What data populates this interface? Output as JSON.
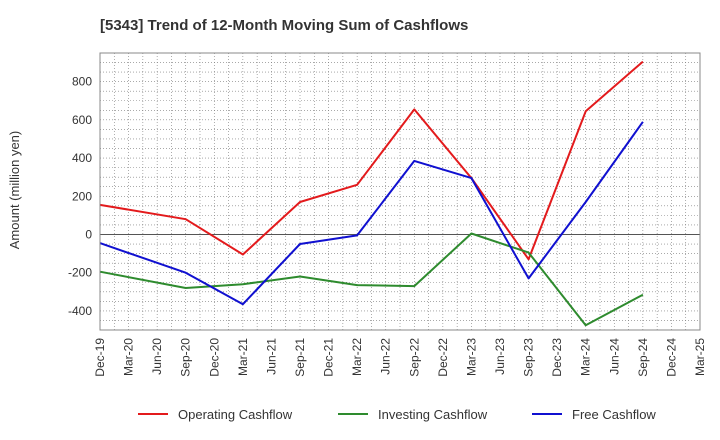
{
  "chart_data": {
    "type": "line",
    "title": "[5343]  Trend of 12-Month Moving Sum of Cashflows",
    "xlabel": "",
    "ylabel": "Amount (million yen)",
    "ylim": [
      -500,
      950
    ],
    "yticks": [
      800,
      600,
      400,
      200,
      0,
      -200,
      -400
    ],
    "grid": true,
    "legend_position": "bottom",
    "categories": [
      "Dec-19",
      "Mar-20",
      "Jun-20",
      "Sep-20",
      "Dec-20",
      "Mar-21",
      "Jun-21",
      "Sep-21",
      "Dec-21",
      "Mar-22",
      "Jun-22",
      "Sep-22",
      "Dec-22",
      "Mar-23",
      "Jun-23",
      "Sep-23",
      "Dec-23",
      "Mar-24",
      "Jun-24",
      "Sep-24",
      "Dec-24",
      "Mar-25"
    ],
    "series": [
      {
        "name": "Operating Cashflow",
        "color": "#e31a1c",
        "values": [
          155,
          null,
          null,
          80,
          null,
          -105,
          null,
          170,
          null,
          260,
          null,
          655,
          null,
          295,
          null,
          -130,
          null,
          645,
          null,
          905,
          null,
          null
        ]
      },
      {
        "name": "Investing Cashflow",
        "color": "#2e8b2e",
        "values": [
          -195,
          null,
          null,
          -280,
          null,
          -260,
          null,
          -220,
          null,
          -265,
          null,
          -270,
          null,
          5,
          null,
          -95,
          null,
          -475,
          null,
          -315,
          null,
          null
        ]
      },
      {
        "name": "Free Cashflow",
        "color": "#1010d0",
        "values": [
          -45,
          null,
          null,
          -200,
          null,
          -365,
          null,
          -50,
          null,
          -5,
          null,
          385,
          null,
          295,
          null,
          -230,
          null,
          170,
          null,
          590,
          null,
          null
        ]
      }
    ]
  }
}
